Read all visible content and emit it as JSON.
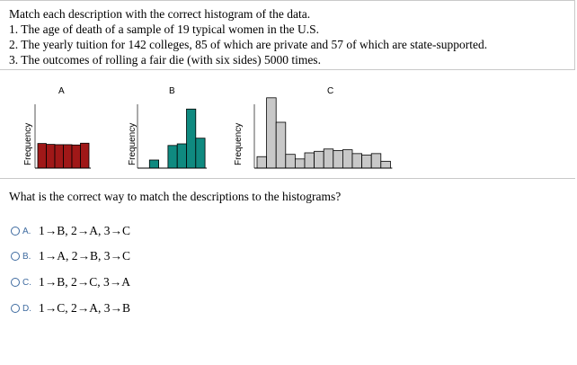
{
  "question": {
    "instruction": "Match each description with the correct histogram of the data.",
    "items": [
      "1. The age of death of a sample of 19 typical women in the U.S.",
      "2. The yearly tuition for 142 colleges, 85 of which are private and 57 of which are state-supported.",
      "3. The outcomes of rolling a fair die (with six sides) 5000 times."
    ]
  },
  "histograms": [
    {
      "label": "A",
      "ylabel": "Frequency",
      "color": "#a01818",
      "chart_data": {
        "type": "bar",
        "title": "A",
        "ylabel": "Frequency",
        "values": [
          8.3,
          8.0,
          7.9,
          7.9,
          7.8,
          8.4
        ]
      }
    },
    {
      "label": "B",
      "ylabel": "Frequency",
      "color": "#0f8a80",
      "chart_data": {
        "type": "bar",
        "title": "B",
        "ylabel": "Frequency",
        "values": [
          0,
          1.0,
          0,
          2.8,
          3.0,
          7.3,
          3.7
        ]
      }
    },
    {
      "label": "C",
      "ylabel": "Frequency",
      "color": "#c8c8c8",
      "chart_data": {
        "type": "bar",
        "title": "C",
        "ylabel": "Frequency",
        "values": [
          1.5,
          9.2,
          6.0,
          1.8,
          1.2,
          2.0,
          2.2,
          2.5,
          2.3,
          2.4,
          1.9,
          1.7,
          1.9,
          0.9
        ]
      }
    }
  ],
  "prompt": "What is the correct way to match the descriptions to the histograms?",
  "options": [
    {
      "letter": "A.",
      "text": "1→B, 2→A, 3→C"
    },
    {
      "letter": "B.",
      "text": "1→A, 2→B, 3→C"
    },
    {
      "letter": "C.",
      "text": "1→B, 2→C, 3→A"
    },
    {
      "letter": "D.",
      "text": "1→C, 2→A, 3→B"
    }
  ]
}
